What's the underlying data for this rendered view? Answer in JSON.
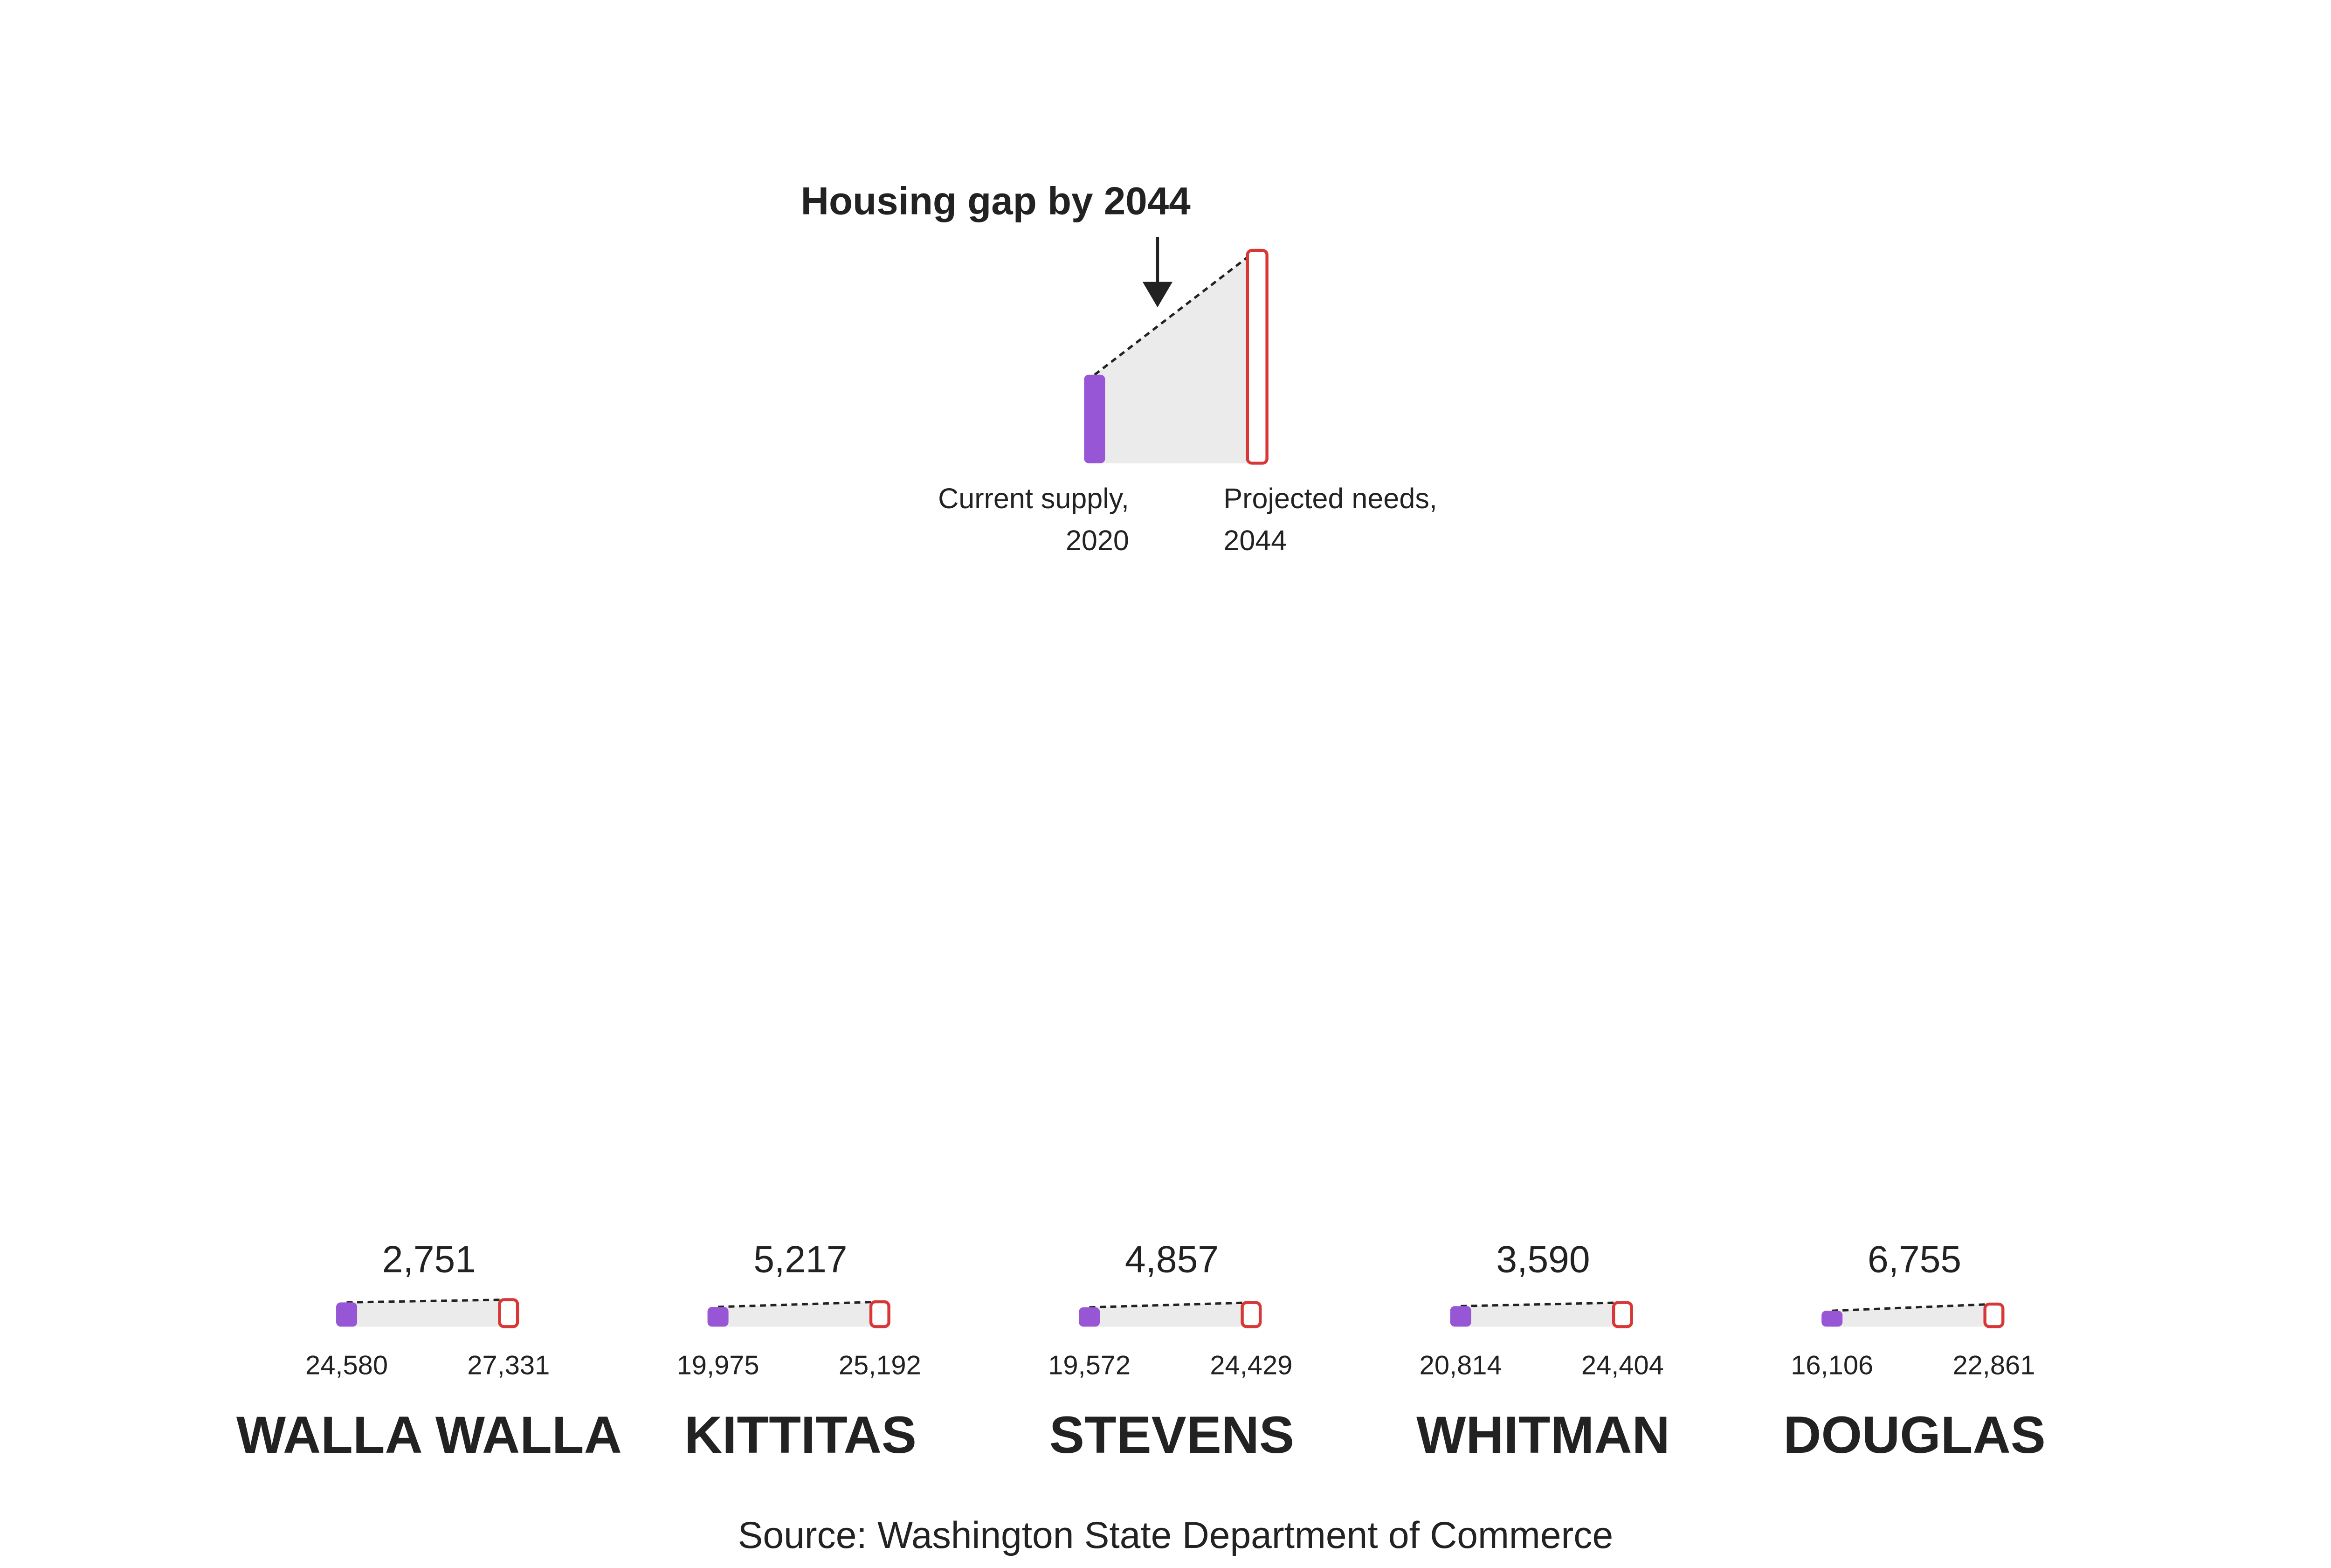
{
  "chart_data": {
    "type": "gap",
    "gap": {
      "name": "Housing gap by 2044",
      "values": [
        2751,
        5217,
        4857,
        3590,
        6755
      ],
      "value_labels": [
        "2,751",
        "5,217",
        "4,857",
        "3,590",
        "6,755"
      ]
    },
    "categories": [
      "WALLA WALLA",
      "KITTITAS",
      "STEVENS",
      "WHITMAN",
      "DOUGLAS"
    ],
    "series": [
      {
        "name": "Current supply, 2020",
        "color": "#9656d6",
        "values": [
          24580,
          19975,
          19572,
          20814,
          16106
        ],
        "value_labels": [
          "24,580",
          "19,975",
          "19,572",
          "20,814",
          "16,106"
        ]
      },
      {
        "name": "Projected needs, 2044",
        "color": "#d93636",
        "values": [
          27331,
          25192,
          24429,
          24404,
          22861
        ],
        "value_labels": [
          "27,331",
          "25,192",
          "24,429",
          "24,404",
          "22,861"
        ]
      }
    ],
    "source": "Source: Washington State Department of Commerce"
  }
}
